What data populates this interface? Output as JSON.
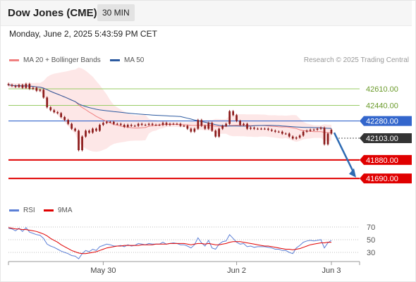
{
  "header": {
    "title": "Dow Jones (CME)",
    "interval": "30 MIN",
    "datetime": "Monday, June 2, 2025 5:43:59 PM CET"
  },
  "legend": {
    "ma20_label": "MA 20 + Bollinger Bands",
    "ma50_label": "MA 50",
    "credit": "Research © 2025 Trading Central",
    "rsi_label": "RSI",
    "nine_ma_label": "9MA"
  },
  "colors": {
    "ma20": "#f08080",
    "bollinger_fill": "#fde3e3",
    "ma50": "#2c5aa0",
    "resistance": "#99cc66",
    "pivot": "#3366cc",
    "support": "#e00000",
    "current": "#333333",
    "candle": "#8b1a1a",
    "rsi": "#5b7fd6",
    "rsi_ma": "#e00000",
    "arrow": "#2e6bb3"
  },
  "chart_data": [
    {
      "type": "candlestick",
      "ylim": [
        41640,
        42740
      ],
      "x_ticks": [
        "May 30",
        "Jun 2",
        "Jun 3"
      ],
      "x_tick_positions_index": [
        28,
        66,
        93
      ],
      "n_bars": 93,
      "close": [
        42650,
        42640,
        42630,
        42650,
        42620,
        42660,
        42610,
        42620,
        42590,
        42600,
        42520,
        42420,
        42390,
        42370,
        42360,
        42320,
        42290,
        42250,
        42200,
        42180,
        41980,
        42120,
        42180,
        42160,
        42200,
        42180,
        42240,
        42260,
        42270,
        42270,
        42250,
        42250,
        42240,
        42220,
        42240,
        42230,
        42230,
        42250,
        42240,
        42240,
        42250,
        42240,
        42240,
        42240,
        42260,
        42240,
        42250,
        42250,
        42250,
        42230,
        42230,
        42200,
        42170,
        42200,
        42290,
        42230,
        42200,
        42260,
        42180,
        42120,
        42200,
        42230,
        42250,
        42380,
        42340,
        42280,
        42240,
        42250,
        42200,
        42210,
        42200,
        42200,
        42200,
        42200,
        42190,
        42180,
        42170,
        42170,
        42150,
        42150,
        42120,
        42100,
        42110,
        42130,
        42170,
        42180,
        42190,
        42190,
        42200,
        42210,
        42040,
        42150,
        42190
      ],
      "levels": [
        {
          "label": "42610.00",
          "value": 42610,
          "kind": "resistance"
        },
        {
          "label": "42440.00",
          "value": 42440,
          "kind": "resistance"
        },
        {
          "label": "42280.00",
          "value": 42280,
          "kind": "pivot"
        },
        {
          "label": "42103.00",
          "value": 42103,
          "kind": "current"
        },
        {
          "label": "41880.00",
          "value": 41880,
          "kind": "support"
        },
        {
          "label": "41690.00",
          "value": 41690,
          "kind": "support"
        }
      ],
      "arrow": {
        "from_value": 42160,
        "to_value": 41700
      }
    },
    {
      "type": "line",
      "name": "RSI",
      "ylim": [
        20,
        80
      ],
      "y_ticks": [
        70,
        50,
        30
      ],
      "rsi": [
        68,
        67,
        64,
        68,
        63,
        69,
        62,
        60,
        58,
        57,
        52,
        43,
        40,
        38,
        35,
        32,
        30,
        28,
        25,
        24,
        20,
        28,
        33,
        31,
        35,
        33,
        39,
        41,
        43,
        42,
        40,
        40,
        41,
        39,
        42,
        40,
        41,
        44,
        43,
        42,
        44,
        43,
        43,
        43,
        46,
        43,
        44,
        45,
        44,
        42,
        42,
        40,
        37,
        42,
        53,
        45,
        40,
        49,
        37,
        35,
        43,
        47,
        48,
        58,
        52,
        46,
        43,
        44,
        39,
        40,
        38,
        39,
        39,
        39,
        38,
        37,
        35,
        35,
        33,
        33,
        30,
        28,
        37,
        41,
        46,
        48,
        49,
        48,
        49,
        50,
        37,
        45,
        49
      ],
      "ma9": [
        69,
        68,
        67,
        67,
        66,
        66,
        65,
        64,
        63,
        61,
        59,
        56,
        52,
        49,
        46,
        42,
        39,
        36,
        33,
        31,
        29,
        28,
        28,
        29,
        30,
        31,
        33,
        35,
        37,
        38,
        39,
        40,
        40,
        41,
        41,
        41,
        41,
        41,
        42,
        42,
        42,
        42,
        43,
        43,
        43,
        43,
        44,
        44,
        44,
        44,
        44,
        43,
        42,
        43,
        44,
        44,
        43,
        44,
        43,
        42,
        42,
        43,
        44,
        46,
        47,
        47,
        47,
        46,
        45,
        44,
        43,
        42,
        41,
        40,
        40,
        39,
        38,
        37,
        36,
        35,
        35,
        34,
        35,
        36,
        38,
        40,
        42,
        43,
        44,
        45,
        45,
        46,
        46
      ]
    }
  ]
}
